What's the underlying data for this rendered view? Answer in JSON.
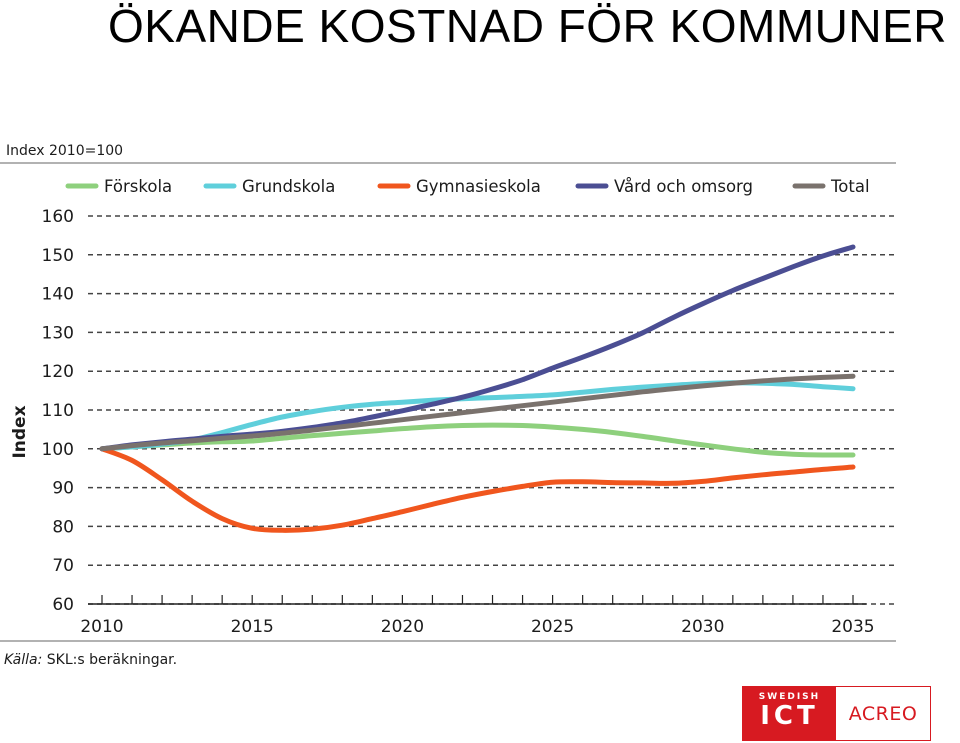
{
  "slide": {
    "title": "ÖKANDE KOSTNAD FÖR KOMMUNER"
  },
  "chart_data": {
    "type": "line",
    "title": "Index 2010=100",
    "ylabel": "Index",
    "xlabel": "",
    "source": "Källa: SKL:s beräkningar.",
    "source_prefix": "Källa:",
    "source_rest": " SKL:s beräkningar.",
    "xlim": [
      2010,
      2035
    ],
    "ylim": [
      60,
      160
    ],
    "xticks": [
      2010,
      2015,
      2020,
      2025,
      2030,
      2035
    ],
    "yticks": [
      60,
      70,
      80,
      90,
      100,
      110,
      120,
      130,
      140,
      150,
      160
    ],
    "grid": true,
    "legend_position": "top",
    "x": [
      2010,
      2011,
      2012,
      2013,
      2014,
      2015,
      2016,
      2017,
      2018,
      2019,
      2020,
      2021,
      2022,
      2023,
      2024,
      2025,
      2026,
      2027,
      2028,
      2029,
      2030,
      2031,
      2032,
      2033,
      2034,
      2035
    ],
    "series": [
      {
        "name": "Förskola",
        "color": "#8ed07d",
        "values": [
          100,
          100.5,
          101,
          101.5,
          101.8,
          102,
          102.7,
          103.4,
          104,
          104.6,
          105.2,
          105.7,
          106,
          106.1,
          106,
          105.6,
          105,
          104.2,
          103.2,
          102.1,
          101,
          100,
          99.1,
          98.6,
          98.4,
          98.4
        ]
      },
      {
        "name": "Grundskola",
        "color": "#5fcfdb",
        "values": [
          100,
          100.5,
          101.2,
          102.3,
          104.2,
          106.3,
          108.2,
          109.6,
          110.7,
          111.5,
          112,
          112.5,
          112.9,
          113.2,
          113.5,
          113.9,
          114.6,
          115.3,
          115.9,
          116.4,
          116.8,
          117,
          116.9,
          116.6,
          116,
          115.5
        ]
      },
      {
        "name": "Gymnasieskola",
        "color": "#f0561e",
        "values": [
          100,
          97,
          92,
          86.5,
          82,
          79.5,
          79,
          79.3,
          80.3,
          82,
          83.8,
          85.7,
          87.5,
          89,
          90.3,
          91.4,
          91.5,
          91.3,
          91.2,
          91.1,
          91.6,
          92.5,
          93.3,
          94,
          94.7,
          95.3
        ]
      },
      {
        "name": "Vård och omsorg",
        "color": "#4b4e93",
        "values": [
          100,
          101,
          101.8,
          102.5,
          103.2,
          103.8,
          104.5,
          105.5,
          106.7,
          108.2,
          109.8,
          111.5,
          113.3,
          115.4,
          117.8,
          120.8,
          123.6,
          126.6,
          129.9,
          133.8,
          137.4,
          140.8,
          143.9,
          146.9,
          149.7,
          152
        ]
      },
      {
        "name": "Total",
        "color": "#7a726d",
        "values": [
          100,
          100.8,
          101.5,
          102.1,
          102.7,
          103.3,
          104,
          104.8,
          105.7,
          106.6,
          107.5,
          108.4,
          109.3,
          110.2,
          111.1,
          112,
          112.9,
          113.8,
          114.7,
          115.5,
          116.2,
          116.9,
          117.5,
          118,
          118.4,
          118.7
        ]
      }
    ]
  },
  "logo": {
    "swedish": "SWEDISH",
    "ict": "ICT",
    "acreo": "ACREO",
    "brand_color": "#d71a21"
  }
}
